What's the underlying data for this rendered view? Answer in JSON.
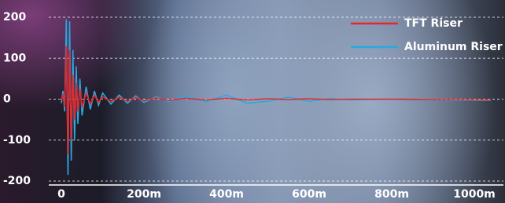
{
  "chart_data": {
    "type": "line",
    "x": [
      0,
      4,
      8,
      12,
      16,
      20,
      24,
      28,
      32,
      36,
      40,
      45,
      50,
      60,
      70,
      80,
      90,
      100,
      120,
      140,
      160,
      180,
      200,
      230,
      260,
      300,
      350,
      400,
      450,
      500,
      550,
      600,
      650,
      700,
      800,
      900,
      1000,
      1040
    ],
    "series": [
      {
        "name": "TFT Riser",
        "color": "#e8262b",
        "values": [
          0,
          10,
          -20,
          130,
          -135,
          120,
          -100,
          60,
          -50,
          40,
          -30,
          25,
          -20,
          15,
          -12,
          10,
          -8,
          6,
          -6,
          5,
          -5,
          4,
          -4,
          3,
          -3,
          2,
          -2,
          2,
          -2,
          1,
          -1,
          1,
          -1,
          0,
          0,
          -1,
          -2,
          -2
        ]
      },
      {
        "name": "Aluminum Riser",
        "color": "#29a8e0",
        "values": [
          -10,
          20,
          -30,
          195,
          -185,
          190,
          -150,
          120,
          -100,
          80,
          -60,
          50,
          -40,
          30,
          -25,
          20,
          -15,
          15,
          -12,
          10,
          -10,
          8,
          -8,
          6,
          -6,
          8,
          -6,
          10,
          -10,
          -5,
          5,
          -5,
          2,
          -2,
          0,
          -2,
          -3,
          -3
        ]
      }
    ],
    "xlim": [
      0,
      1040
    ],
    "xticks": [
      0,
      {
        "value": 200,
        "label": "200m"
      },
      {
        "value": 400,
        "label": "400m"
      },
      {
        "value": 600,
        "label": "600m"
      },
      {
        "value": 800,
        "label": "800m"
      },
      {
        "value": 1000,
        "label": "1000m"
      }
    ],
    "ylim": [
      -200,
      200
    ],
    "yticks": [
      -200,
      -100,
      0,
      100,
      200
    ],
    "grid": true,
    "legend": "top-right"
  }
}
